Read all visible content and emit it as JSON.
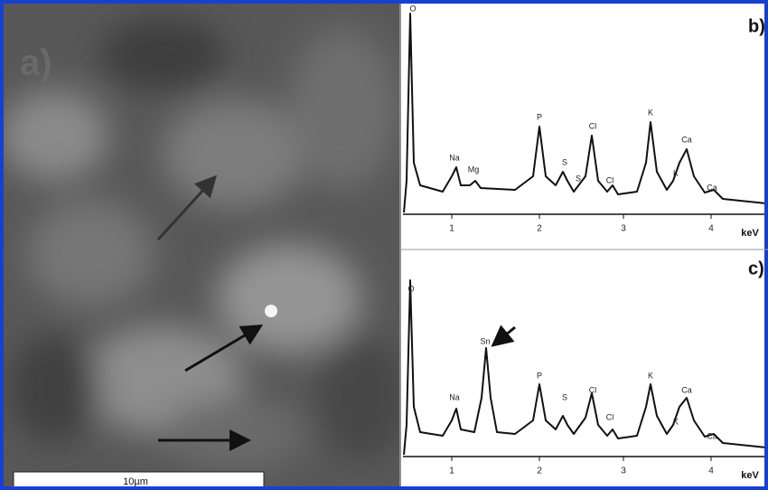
{
  "panel_a": {
    "label": "a)",
    "scale_bar": "10µm"
  },
  "panel_b": {
    "label": "b)",
    "unit": "keV",
    "ticks": [
      "1",
      "2",
      "3",
      "4"
    ],
    "peaks": [
      "O",
      "Na",
      "Mg",
      "P",
      "S",
      "S",
      "Cl",
      "Cl",
      "K",
      "K",
      "Ca",
      "Ca"
    ]
  },
  "panel_c": {
    "label": "c)",
    "unit": "keV",
    "ticks": [
      "1",
      "2",
      "3",
      "4"
    ],
    "peaks": [
      "O",
      "Na",
      "Sn",
      "P",
      "S",
      "Cl",
      "Cl",
      "K",
      "K",
      "Ca",
      "Ca"
    ]
  }
}
